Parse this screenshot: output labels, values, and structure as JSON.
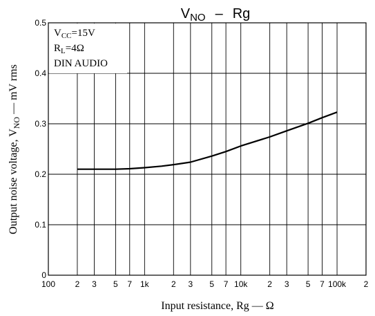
{
  "chart_data": {
    "type": "line",
    "title": "V_NO – Rg",
    "title_parts": {
      "main": "V",
      "sub": "NO",
      "dash": "–",
      "tail": "Rg"
    },
    "xlabel": "Input resistance, Rg — Ω",
    "ylabel_parts": {
      "pre": "Output noise voltage, V",
      "sub": "NO",
      "post": " — mV rms"
    },
    "x_scale": "log",
    "xlim": [
      100,
      200000
    ],
    "ylim": [
      0,
      0.5
    ],
    "grid": true,
    "x_major_labels": [
      {
        "value": 100,
        "label": "100"
      },
      {
        "value": 1000,
        "label": "1k"
      },
      {
        "value": 10000,
        "label": "10k"
      },
      {
        "value": 100000,
        "label": "100k"
      }
    ],
    "x_minor_labels": [
      {
        "value": 200,
        "label": "2"
      },
      {
        "value": 300,
        "label": "3"
      },
      {
        "value": 500,
        "label": "5"
      },
      {
        "value": 700,
        "label": "7"
      },
      {
        "value": 2000,
        "label": "2"
      },
      {
        "value": 3000,
        "label": "3"
      },
      {
        "value": 5000,
        "label": "5"
      },
      {
        "value": 7000,
        "label": "7"
      },
      {
        "value": 20000,
        "label": "2"
      },
      {
        "value": 30000,
        "label": "3"
      },
      {
        "value": 50000,
        "label": "5"
      },
      {
        "value": 70000,
        "label": "7"
      },
      {
        "value": 200000,
        "label": "2"
      }
    ],
    "y_ticks": [
      {
        "value": 0,
        "label": "0"
      },
      {
        "value": 0.1,
        "label": "0.1"
      },
      {
        "value": 0.2,
        "label": "0.2"
      },
      {
        "value": 0.3,
        "label": "0.3"
      },
      {
        "value": 0.4,
        "label": "0.4"
      },
      {
        "value": 0.5,
        "label": "0.5"
      }
    ],
    "conditions": [
      {
        "main": "V",
        "sub": "CC",
        "post": "=15V"
      },
      {
        "main": "R",
        "sub": "L",
        "post": "=4Ω"
      },
      {
        "main": "DIN AUDIO",
        "sub": "",
        "post": ""
      }
    ],
    "series": [
      {
        "x": [
          200,
          300,
          500,
          700,
          1000,
          1500,
          2000,
          3000,
          5000,
          7000,
          10000,
          20000,
          30000,
          50000,
          70000,
          100000
        ],
        "y": [
          0.21,
          0.21,
          0.21,
          0.211,
          0.213,
          0.216,
          0.219,
          0.224,
          0.236,
          0.245,
          0.256,
          0.274,
          0.286,
          0.301,
          0.312,
          0.323
        ]
      }
    ]
  }
}
